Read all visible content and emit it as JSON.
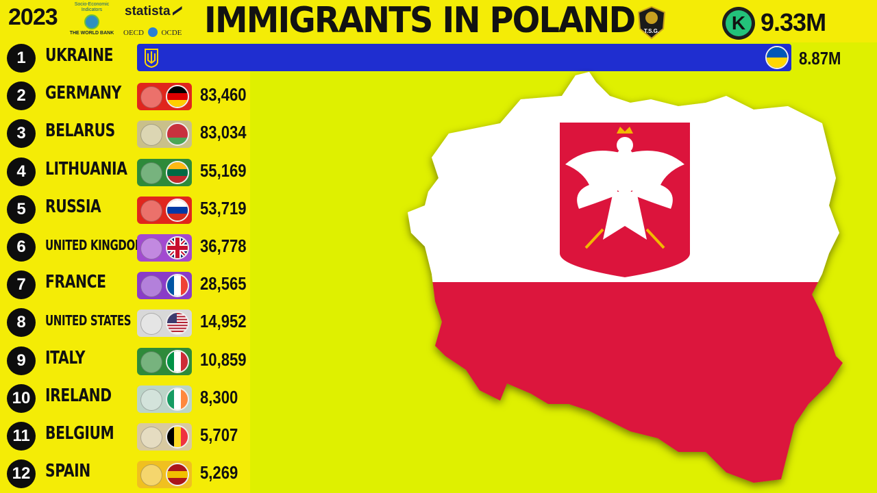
{
  "header": {
    "year": "2023",
    "title": "IMMIGRANTS IN POLAND",
    "total": "9.33M",
    "worldbank_text": "Socio-Economic Indicators",
    "worldbank_name": "THE WORLD BANK",
    "statista": "statista",
    "oecd_left": "OECD",
    "oecd_right": "OCDE",
    "tsg": "T.S.G.",
    "k_logo": "K"
  },
  "colors": {
    "background": "#dff000",
    "panel": "#f4ec06",
    "ukraine_bar": "#1f2ed0",
    "poland_white": "#ffffff",
    "poland_red": "#dc143c"
  },
  "chart_data": {
    "type": "bar",
    "title": "IMMIGRANTS IN POLAND",
    "year": "2023",
    "total_label": "9.33M",
    "categories": [
      "UKRAINE",
      "GERMANY",
      "BELARUS",
      "LITHUANIA",
      "RUSSIA",
      "UNITED KINGDOM",
      "FRANCE",
      "UNITED STATES",
      "ITALY",
      "IRELAND",
      "BELGIUM",
      "SPAIN"
    ],
    "values": [
      8870000,
      83460,
      83034,
      55169,
      53719,
      36778,
      28565,
      14952,
      10859,
      8300,
      5707,
      5269
    ],
    "value_labels": [
      "8.87M",
      "83,460",
      "83,034",
      "55,169",
      "53,719",
      "36,778",
      "28,565",
      "14,952",
      "10,859",
      "8,300",
      "5,707",
      "5,269"
    ],
    "ranks": [
      "1",
      "2",
      "3",
      "4",
      "5",
      "6",
      "7",
      "8",
      "9",
      "10",
      "11",
      "12"
    ]
  },
  "rows": [
    {
      "rank": "1",
      "country": "UKRAINE",
      "value": "8.87M",
      "badge": "#1f2ed0",
      "flag": [
        "#0057b7",
        "#ffd700"
      ],
      "flag_dir": "h",
      "emblem": "trident-emblem"
    },
    {
      "rank": "2",
      "country": "GERMANY",
      "value": "83,460",
      "badge": "#e0261d",
      "flag": [
        "#000000",
        "#dd0000",
        "#ffce00"
      ],
      "flag_dir": "h",
      "emblem": "eagle-emblem"
    },
    {
      "rank": "3",
      "country": "BELARUS",
      "value": "83,034",
      "badge": "#c9c08a",
      "flag": [
        "#c8313e",
        "#c8313e",
        "#4aa657"
      ],
      "flag_dir": "h",
      "emblem": "belarus-emblem"
    },
    {
      "rank": "4",
      "country": "LITHUANIA",
      "value": "55,169",
      "badge": "#2e8a3a",
      "flag": [
        "#fdb913",
        "#006a44",
        "#c1272d"
      ],
      "flag_dir": "h",
      "emblem": "vytis-emblem"
    },
    {
      "rank": "5",
      "country": "RUSSIA",
      "value": "53,719",
      "badge": "#e0261d",
      "flag": [
        "#ffffff",
        "#0039a6",
        "#d52b1e"
      ],
      "flag_dir": "h",
      "emblem": "russia-eagle-emblem"
    },
    {
      "rank": "6",
      "country": "UNITED KINGDOM",
      "value": "36,778",
      "badge": "#a24ad0",
      "flag": [
        "#012169",
        "#ffffff",
        "#c8102e"
      ],
      "flag_dir": "uk",
      "emblem": "royal-arms-emblem"
    },
    {
      "rank": "7",
      "country": "FRANCE",
      "value": "28,565",
      "badge": "#8a3cc8",
      "flag": [
        "#0055a4",
        "#ffffff",
        "#ef4135"
      ],
      "flag_dir": "v",
      "emblem": "france-emblem"
    },
    {
      "rank": "8",
      "country": "UNITED STATES",
      "value": "14,952",
      "badge": "#d8d8d8",
      "flag": [
        "#b22234",
        "#ffffff",
        "#3c3b6e"
      ],
      "flag_dir": "us",
      "emblem": "us-seal-emblem"
    },
    {
      "rank": "9",
      "country": "ITALY",
      "value": "10,859",
      "badge": "#2e8a3a",
      "flag": [
        "#009246",
        "#ffffff",
        "#ce2b37"
      ],
      "flag_dir": "v",
      "emblem": "italy-emblem"
    },
    {
      "rank": "10",
      "country": "IRELAND",
      "value": "8,300",
      "badge": "#bcd4c8",
      "flag": [
        "#169b62",
        "#ffffff",
        "#ff883e"
      ],
      "flag_dir": "v",
      "emblem": "harp-emblem"
    },
    {
      "rank": "11",
      "country": "BELGIUM",
      "value": "5,707",
      "badge": "#d8c9a0",
      "flag": [
        "#000000",
        "#fdda24",
        "#ef3340"
      ],
      "flag_dir": "v",
      "emblem": "belgium-emblem"
    },
    {
      "rank": "12",
      "country": "SPAIN",
      "value": "5,269",
      "badge": "#f0c020",
      "flag": [
        "#aa151b",
        "#f1bf00",
        "#aa151b"
      ],
      "flag_dir": "h",
      "emblem": "spain-emblem"
    }
  ]
}
